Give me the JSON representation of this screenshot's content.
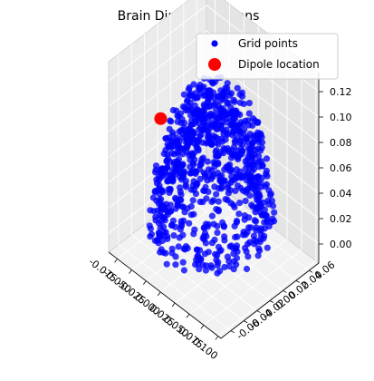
{
  "chart_data": {
    "type": "scatter",
    "projection": "3d",
    "title": "Brain Dipole Locations",
    "xlabel": "",
    "ylabel": "",
    "zlabel": "",
    "xlim": [
      -0.09,
      0.105
    ],
    "ylim": [
      -0.075,
      0.075
    ],
    "zlim": [
      -0.015,
      0.135
    ],
    "x_ticks": [
      "-0.075",
      "-0.050",
      "-0.025",
      "0.000",
      "0.025",
      "0.050",
      "0.075",
      "0.100"
    ],
    "y_ticks": [
      "-0.06",
      "-0.04",
      "-0.02",
      "0.00",
      "0.02",
      "0.04",
      "0.06"
    ],
    "z_ticks": [
      "0.00",
      "0.02",
      "0.04",
      "0.06",
      "0.08",
      "0.10",
      "0.12"
    ],
    "x_tick_values": [
      -0.075,
      -0.05,
      -0.025,
      0.0,
      0.025,
      0.05,
      0.075,
      0.1
    ],
    "y_tick_values": [
      -0.06,
      -0.04,
      -0.02,
      0.0,
      0.02,
      0.04,
      0.06
    ],
    "z_tick_values": [
      0.0,
      0.02,
      0.04,
      0.06,
      0.08,
      0.1,
      0.12
    ],
    "grid": true,
    "legend_position": "top-right",
    "series": [
      {
        "name": "Grid points",
        "color": "#0000ff",
        "marker": "circle",
        "shape": "hemisphere",
        "center": [
          0.005,
          0.0,
          0.0
        ],
        "radius": 0.075,
        "point_count": 900
      },
      {
        "name": "Dipole location",
        "color": "#ff0000",
        "marker": "circle",
        "points": [
          [
            -0.045,
            -0.035,
            0.09
          ]
        ]
      }
    ]
  }
}
